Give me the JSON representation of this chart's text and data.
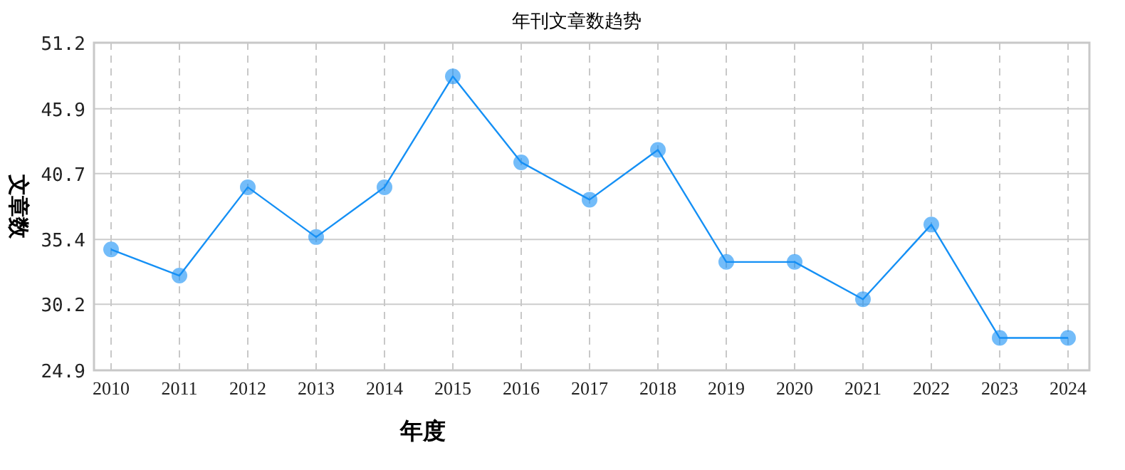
{
  "chart_data": {
    "type": "line",
    "title": "年刊文章数趋势",
    "xlabel": "年度",
    "ylabel": "文章数",
    "categories": [
      "2010",
      "2011",
      "2012",
      "2013",
      "2014",
      "2015",
      "2016",
      "2017",
      "2018",
      "2019",
      "2020",
      "2021",
      "2022",
      "2023",
      "2024"
    ],
    "series": [
      {
        "color": "#1590f5",
        "values": [
          34.6,
          32.5,
          39.6,
          35.6,
          39.6,
          48.5,
          41.6,
          38.6,
          42.6,
          33.6,
          33.6,
          30.6,
          36.6,
          27.5,
          27.5
        ]
      }
    ],
    "ylim": [
      24.9,
      51.2
    ],
    "yticks": [
      24.9,
      30.2,
      35.4,
      40.7,
      45.9,
      51.2
    ],
    "grid": true,
    "marker": "circle",
    "line_style": "solid"
  }
}
